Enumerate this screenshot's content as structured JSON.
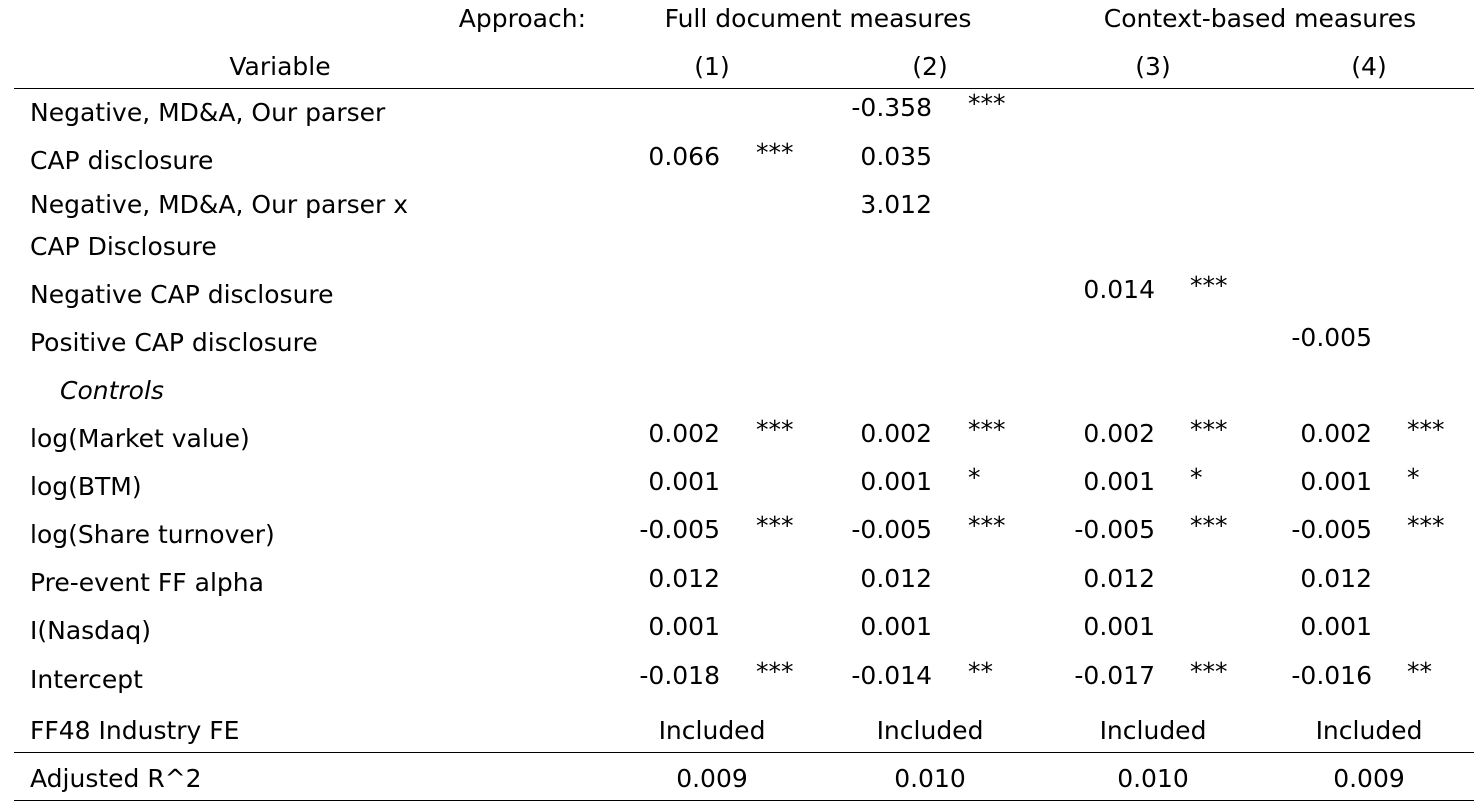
{
  "header": {
    "approach_label": "Approach:",
    "variable_label": "Variable",
    "group_full": "Full document measures",
    "group_context": "Context-based measures",
    "col_labels": [
      "(1)",
      "(2)",
      "(3)",
      "(4)"
    ]
  },
  "rows": [
    {
      "label": "Negative, MD&A, Our parser",
      "cells": [
        [
          "",
          ""
        ],
        [
          "-0.358",
          "***"
        ],
        [
          "",
          ""
        ],
        [
          "",
          ""
        ]
      ]
    },
    {
      "label": "CAP disclosure",
      "cells": [
        [
          "0.066",
          "***"
        ],
        [
          "0.035",
          ""
        ],
        [
          "",
          ""
        ],
        [
          "",
          ""
        ]
      ]
    },
    {
      "label": "Negative, MD&A, Our parser x",
      "cells": [
        [
          "",
          ""
        ],
        [
          "3.012",
          ""
        ],
        [
          "",
          ""
        ],
        [
          "",
          ""
        ]
      ]
    },
    {
      "label": "CAP Disclosure",
      "cells": [
        [
          "",
          ""
        ],
        [
          "",
          ""
        ],
        [
          "",
          ""
        ],
        [
          "",
          ""
        ]
      ]
    },
    {
      "label": "Negative CAP disclosure",
      "cells": [
        [
          "",
          ""
        ],
        [
          "",
          ""
        ],
        [
          "0.014",
          "***"
        ],
        [
          "",
          ""
        ]
      ]
    },
    {
      "label": "Positive CAP disclosure",
      "cells": [
        [
          "",
          ""
        ],
        [
          "",
          ""
        ],
        [
          "",
          ""
        ],
        [
          "-0.005",
          ""
        ]
      ]
    },
    {
      "label": "Controls",
      "cells": [
        [
          "",
          ""
        ],
        [
          "",
          ""
        ],
        [
          "",
          ""
        ],
        [
          "",
          ""
        ]
      ]
    },
    {
      "label": "log(Market value)",
      "cells": [
        [
          "0.002",
          "***"
        ],
        [
          "0.002",
          "***"
        ],
        [
          "0.002",
          "***"
        ],
        [
          "0.002",
          "***"
        ]
      ]
    },
    {
      "label": "log(BTM)",
      "cells": [
        [
          "0.001",
          ""
        ],
        [
          "0.001",
          "*"
        ],
        [
          "0.001",
          "*"
        ],
        [
          "0.001",
          "*"
        ]
      ]
    },
    {
      "label": "log(Share turnover)",
      "cells": [
        [
          "-0.005",
          "***"
        ],
        [
          "-0.005",
          "***"
        ],
        [
          "-0.005",
          "***"
        ],
        [
          "-0.005",
          "***"
        ]
      ]
    },
    {
      "label": "Pre-event FF alpha",
      "cells": [
        [
          "0.012",
          ""
        ],
        [
          "0.012",
          ""
        ],
        [
          "0.012",
          ""
        ],
        [
          "0.012",
          ""
        ]
      ]
    },
    {
      "label": "I(Nasdaq)",
      "cells": [
        [
          "0.001",
          ""
        ],
        [
          "0.001",
          ""
        ],
        [
          "0.001",
          ""
        ],
        [
          "0.001",
          ""
        ]
      ]
    },
    {
      "label": "Intercept",
      "cells": [
        [
          "-0.018",
          "***"
        ],
        [
          "-0.014",
          "**"
        ],
        [
          "-0.017",
          "***"
        ],
        [
          "-0.016",
          "**"
        ]
      ]
    }
  ],
  "fe_row": {
    "label": "FF48 Industry FE",
    "values": [
      "Included",
      "Included",
      "Included",
      "Included"
    ]
  },
  "r2_row": {
    "label": "Adjusted R^2",
    "values": [
      "0.009",
      "0.010",
      "0.010",
      "0.009"
    ]
  }
}
